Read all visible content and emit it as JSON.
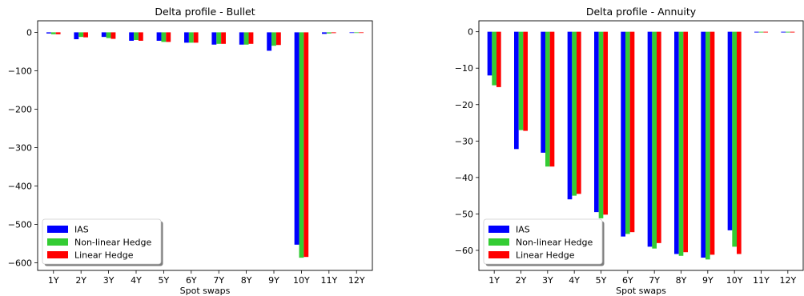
{
  "chart_data": [
    {
      "type": "bar",
      "title": "Delta profile - Bullet",
      "xlabel": "Spot swaps",
      "ylabel": "",
      "categories": [
        "1Y",
        "2Y",
        "3Y",
        "4Y",
        "5Y",
        "6Y",
        "7Y",
        "8Y",
        "9Y",
        "10Y",
        "11Y",
        "12Y"
      ],
      "series": [
        {
          "name": "IAS",
          "color": "#0000ff",
          "values": [
            -3,
            -18,
            -12,
            -22,
            -22,
            -27,
            -32,
            -32,
            -48,
            -553,
            -4,
            -1
          ]
        },
        {
          "name": "Non-linear Hedge",
          "color": "#33cc33",
          "values": [
            -5,
            -12,
            -15,
            -20,
            -25,
            -27,
            -30,
            -32,
            -35,
            -587,
            -3,
            -1
          ]
        },
        {
          "name": "Linear Hedge",
          "color": "#ff0000",
          "values": [
            -5,
            -13,
            -17,
            -22,
            -25,
            -27,
            -30,
            -30,
            -33,
            -585,
            -2,
            -1
          ]
        }
      ],
      "ylim": [
        -620,
        30
      ],
      "yticks": [
        0,
        -100,
        -200,
        -300,
        -400,
        -500,
        -600
      ],
      "ytick_labels": [
        "0",
        "−100",
        "−200",
        "−300",
        "−400",
        "−500",
        "−600"
      ],
      "grid": false,
      "legend": "lower-left"
    },
    {
      "type": "bar",
      "title": "Delta profile - Annuity",
      "xlabel": "Spot swaps",
      "ylabel": "",
      "categories": [
        "1Y",
        "2Y",
        "3Y",
        "4Y",
        "5Y",
        "6Y",
        "7Y",
        "8Y",
        "9Y",
        "10Y",
        "11Y",
        "12Y"
      ],
      "series": [
        {
          "name": "IAS",
          "color": "#0000ff",
          "values": [
            -12,
            -32.2,
            -33.2,
            -46,
            -49.5,
            -56.2,
            -59,
            -61,
            -62,
            -54.5,
            -0.2,
            -0.2
          ]
        },
        {
          "name": "Non-linear Hedge",
          "color": "#33cc33",
          "values": [
            -14.7,
            -27,
            -37,
            -45,
            -51.2,
            -55.5,
            -59.5,
            -61.5,
            -62.5,
            -59,
            -0.2,
            -0.2
          ]
        },
        {
          "name": "Linear Hedge",
          "color": "#ff0000",
          "values": [
            -15.2,
            -27.2,
            -37,
            -44.5,
            -50.2,
            -55,
            -58,
            -60.5,
            -61.2,
            -61,
            -0.2,
            -0.2
          ]
        }
      ],
      "ylim": [
        -65.5,
        3
      ],
      "yticks": [
        0,
        -10,
        -20,
        -30,
        -40,
        -50,
        -60
      ],
      "ytick_labels": [
        "0",
        "−10",
        "−20",
        "−30",
        "−40",
        "−50",
        "−60"
      ],
      "grid": false,
      "legend": "lower-left"
    }
  ]
}
